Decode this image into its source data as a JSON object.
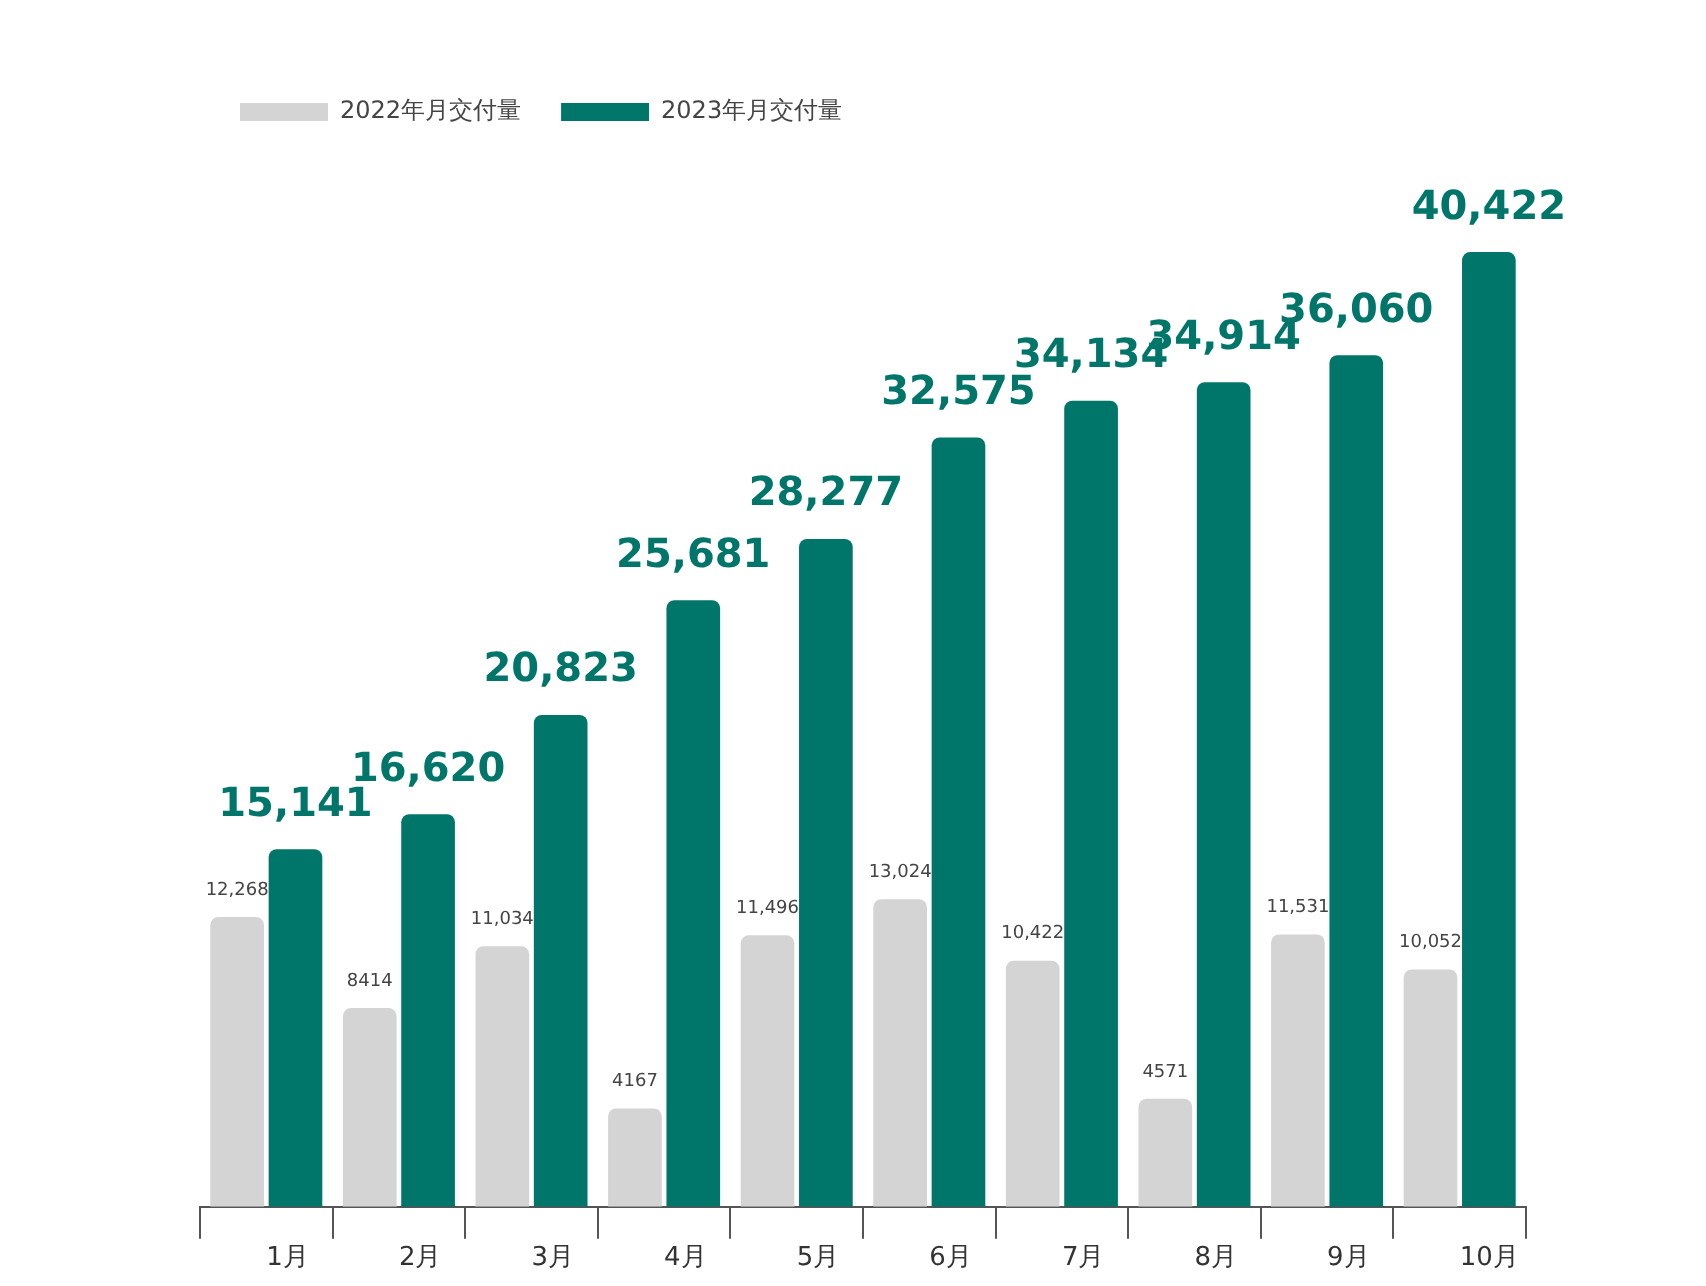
{
  "chart_data": {
    "type": "bar",
    "categories": [
      "1月",
      "2月",
      "3月",
      "4月",
      "5月",
      "6月",
      "7月",
      "8月",
      "9月",
      "10月"
    ],
    "legend": "top left",
    "series": [
      {
        "name": "2022年月交付量",
        "color": "#d4d4d4",
        "values": [
          12268,
          8414,
          11034,
          4167,
          11496,
          13024,
          10422,
          4571,
          11531,
          10052
        ],
        "value_labels": [
          "12,268",
          "8414",
          "11,034",
          "4167",
          "11,496",
          "13,024",
          "10,422",
          "4571",
          "11,531",
          "10,052"
        ]
      },
      {
        "name": "2023年月交付量",
        "color": "#00756a",
        "values": [
          15141,
          16620,
          20823,
          25681,
          28277,
          32575,
          34134,
          34914,
          36060,
          40422
        ],
        "value_labels": [
          "15,141",
          "16,620",
          "20,823",
          "25,681",
          "28,277",
          "32,575",
          "34,134",
          "34,914",
          "36,060",
          "40,422"
        ]
      }
    ]
  }
}
